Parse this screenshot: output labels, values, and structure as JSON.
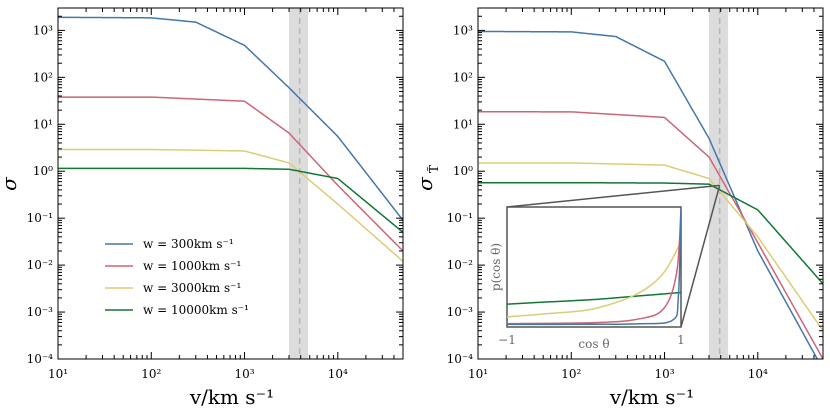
{
  "chart_data": [
    {
      "type": "line",
      "xlabel": "v/km s⁻¹",
      "ylabel": "σ",
      "xscale": "log",
      "yscale": "log",
      "xlim": [
        10,
        50000
      ],
      "ylim": [
        0.0001,
        3000
      ],
      "x_ticks": [
        10,
        100,
        1000,
        10000
      ],
      "x_tick_labels": [
        "10¹",
        "10²",
        "10³",
        "10⁴"
      ],
      "y_ticks": [
        0.0001,
        0.001,
        0.01,
        0.1,
        1,
        10,
        100,
        1000
      ],
      "y_tick_labels": [
        "10⁻⁴",
        "10⁻³",
        "10⁻²",
        "10⁻¹",
        "10⁰",
        "10¹",
        "10²",
        "10³"
      ],
      "legend_position": "lower-left",
      "band": {
        "x_range": [
          3000,
          4800
        ],
        "dashed_line_x": 3900
      },
      "series": [
        {
          "name": "w = 300km s⁻¹",
          "color": "#4477aa",
          "x": [
            10,
            100,
            300,
            1000,
            3000,
            10000,
            50000
          ],
          "y": [
            1900,
            1850,
            1500,
            480,
            60,
            5.5,
            0.09
          ]
        },
        {
          "name": "w = 1000km s⁻¹",
          "color": "#cc6677",
          "x": [
            10,
            100,
            1000,
            3000,
            10000,
            50000
          ],
          "y": [
            38,
            38,
            31,
            6.5,
            0.5,
            0.02
          ]
        },
        {
          "name": "w = 3000km s⁻¹",
          "color": "#ddcc77",
          "x": [
            10,
            100,
            1000,
            3000,
            10000,
            50000
          ],
          "y": [
            2.9,
            2.9,
            2.7,
            1.5,
            0.2,
            0.012
          ]
        },
        {
          "name": "w = 10000km s⁻¹",
          "color": "#117733",
          "x": [
            10,
            100,
            1000,
            3000,
            10000,
            50000
          ],
          "y": [
            1.15,
            1.15,
            1.15,
            1.1,
            0.7,
            0.05
          ]
        }
      ]
    },
    {
      "type": "line",
      "xlabel": "v/km s⁻¹",
      "ylabel": "σ",
      "ylabel_subscript": "T̃",
      "xscale": "log",
      "yscale": "log",
      "xlim": [
        10,
        50000
      ],
      "ylim": [
        0.0001,
        3000
      ],
      "x_ticks": [
        10,
        100,
        1000,
        10000
      ],
      "x_tick_labels": [
        "10¹",
        "10²",
        "10³",
        "10⁴"
      ],
      "y_ticks": [
        0.0001,
        0.001,
        0.01,
        0.1,
        1,
        10,
        100,
        1000
      ],
      "y_tick_labels": [
        "10⁻⁴",
        "10⁻³",
        "10⁻²",
        "10⁻¹",
        "10⁰",
        "10¹",
        "10²",
        "10³"
      ],
      "band": {
        "x_range": [
          3000,
          4800
        ],
        "dashed_line_x": 3900
      },
      "series": [
        {
          "color": "#4477aa",
          "x": [
            10,
            100,
            300,
            1000,
            3000,
            10000,
            50000
          ],
          "y": [
            950,
            930,
            740,
            220,
            5,
            0.02,
            6e-05
          ]
        },
        {
          "color": "#cc6677",
          "x": [
            10,
            100,
            1000,
            3000,
            10000,
            50000
          ],
          "y": [
            18.5,
            18.4,
            14,
            2.0,
            0.03,
            0.0001
          ]
        },
        {
          "color": "#ddcc77",
          "x": [
            10,
            100,
            1000,
            3000,
            10000,
            50000
          ],
          "y": [
            1.5,
            1.5,
            1.35,
            0.7,
            0.04,
            0.0004
          ]
        },
        {
          "color": "#117733",
          "x": [
            10,
            100,
            1000,
            3000,
            10000,
            50000
          ],
          "y": [
            0.57,
            0.57,
            0.56,
            0.53,
            0.15,
            0.004
          ]
        }
      ],
      "inset": {
        "type": "line",
        "xlabel": "cos θ",
        "ylabel": "p(cos θ)",
        "x_tick_labels": [
          "−1",
          "1"
        ],
        "zoom_point": {
          "x": 3900,
          "y": 0.5
        },
        "series": [
          {
            "color": "#117733",
            "x": [
              -1,
              -0.5,
              0,
              0.5,
              1
            ],
            "y": [
              0.18,
              0.2,
              0.22,
              0.25,
              0.28
            ]
          },
          {
            "color": "#ddcc77",
            "x": [
              -1,
              -0.5,
              0,
              0.5,
              0.8,
              1
            ],
            "y": [
              0.07,
              0.1,
              0.14,
              0.27,
              0.45,
              0.72
            ]
          },
          {
            "color": "#cc6677",
            "x": [
              -1,
              0,
              0.5,
              0.8,
              0.95,
              1
            ],
            "y": [
              0.012,
              0.02,
              0.05,
              0.14,
              0.45,
              1.0
            ]
          },
          {
            "color": "#4477aa",
            "x": [
              -1,
              0,
              0.5,
              0.9,
              0.97,
              1
            ],
            "y": [
              0.005,
              0.006,
              0.01,
              0.04,
              0.25,
              1.0
            ]
          }
        ]
      }
    }
  ]
}
